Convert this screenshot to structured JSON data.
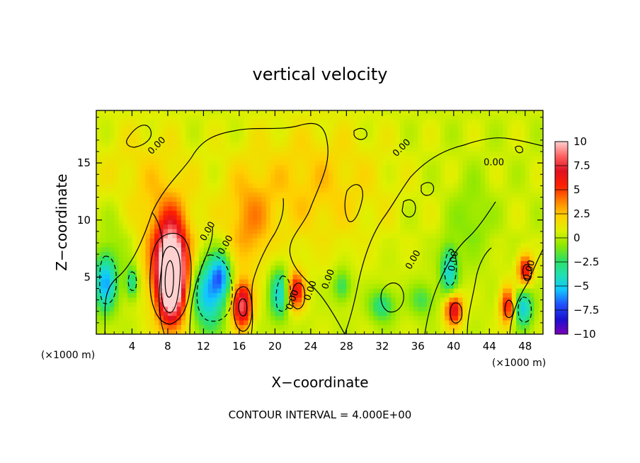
{
  "chart_data": {
    "type": "heatmap",
    "title": "vertical velocity",
    "xlabel": "X−coordinate",
    "ylabel": "Z−coordinate",
    "x_unit_left": "(×1000 m)",
    "x_unit_right": "(×1000 m)",
    "xlim": [
      0,
      50
    ],
    "ylim": [
      0,
      19.6
    ],
    "x_ticks": [
      4,
      8,
      12,
      16,
      20,
      24,
      28,
      32,
      36,
      40,
      44,
      48
    ],
    "y_ticks": [
      5,
      10,
      15
    ],
    "colorbar": {
      "labels": [
        "10",
        "7.5",
        "5",
        "2.5",
        "0",
        "−2.5",
        "−5",
        "−7.5",
        "−10"
      ],
      "values": [
        10,
        7.5,
        5,
        2.5,
        0,
        -2.5,
        -5,
        -7.5,
        -10
      ],
      "range": [
        -10,
        10
      ],
      "colors": [
        "#7a00b8",
        "#1a10d0",
        "#2050ff",
        "#10c8ff",
        "#20e0b0",
        "#30e060",
        "#8ee800",
        "#dff000",
        "#ffd000",
        "#ff8000",
        "#ff2000",
        "#e01020",
        "#ff6060",
        "#ffd0d0"
      ]
    },
    "contour_interval_text": "CONTOUR INTERVAL = 4.000E+00",
    "contour_labels": [
      "0.00",
      "0.00",
      "0.00",
      "0.00",
      "0.00",
      "0.00",
      "0.00",
      "0.00",
      "0.00",
      "0.00",
      "0.00"
    ],
    "features": [
      {
        "x": 1.0,
        "z": 4.5,
        "w": -6,
        "sx": 0.9,
        "sz": 1.8
      },
      {
        "x": 4.0,
        "z": 4.5,
        "w": -4,
        "sx": 0.5,
        "sz": 1.0
      },
      {
        "x": 8.4,
        "z": 5.0,
        "w": 13,
        "sx": 1.0,
        "sz": 2.6
      },
      {
        "x": 8.2,
        "z": 6.5,
        "w": 5,
        "sx": 1.8,
        "sz": 3.5
      },
      {
        "x": 12.5,
        "z": 3.5,
        "w": -6,
        "sx": 1.3,
        "sz": 2.2
      },
      {
        "x": 14.0,
        "z": 5.2,
        "w": -5,
        "sx": 0.8,
        "sz": 1.4
      },
      {
        "x": 16.3,
        "z": 2.5,
        "w": 8,
        "sx": 0.8,
        "sz": 1.4
      },
      {
        "x": 17.0,
        "z": 9.5,
        "w": 2.5,
        "sx": 1.8,
        "sz": 3.0
      },
      {
        "x": 20.5,
        "z": 3.6,
        "w": -5,
        "sx": 0.8,
        "sz": 1.6
      },
      {
        "x": 22.3,
        "z": 3.8,
        "w": 6,
        "sx": 0.7,
        "sz": 1.2
      },
      {
        "x": 27.5,
        "z": 4.2,
        "w": -3,
        "sx": 0.7,
        "sz": 1.0
      },
      {
        "x": 32.0,
        "z": 2.5,
        "w": -3.5,
        "sx": 1.0,
        "sz": 1.0
      },
      {
        "x": 36.5,
        "z": 3.0,
        "w": -2.5,
        "sx": 1.0,
        "sz": 1.0
      },
      {
        "x": 39.5,
        "z": 5.5,
        "w": -5,
        "sx": 0.7,
        "sz": 1.6
      },
      {
        "x": 40.0,
        "z": 2.2,
        "w": 7,
        "sx": 0.7,
        "sz": 1.0
      },
      {
        "x": 46.0,
        "z": 2.5,
        "w": 5.5,
        "sx": 0.6,
        "sz": 1.2
      },
      {
        "x": 47.8,
        "z": 2.3,
        "w": -5.5,
        "sx": 0.7,
        "sz": 1.2
      },
      {
        "x": 48.0,
        "z": 5.6,
        "w": 6,
        "sx": 0.6,
        "sz": 1.0
      },
      {
        "x": 42.0,
        "z": 10.0,
        "w": -1.5,
        "sx": 1.5,
        "sz": 2.5
      },
      {
        "x": 2.5,
        "z": 9.0,
        "w": -1.2,
        "sx": 1.5,
        "sz": 3.0
      },
      {
        "x": 24.0,
        "z": 13.0,
        "w": 2.0,
        "sx": 6.0,
        "sz": 4.0
      },
      {
        "x": 5.0,
        "z": 13.0,
        "w": 1.5,
        "sx": 4.0,
        "sz": 4.0
      }
    ]
  }
}
